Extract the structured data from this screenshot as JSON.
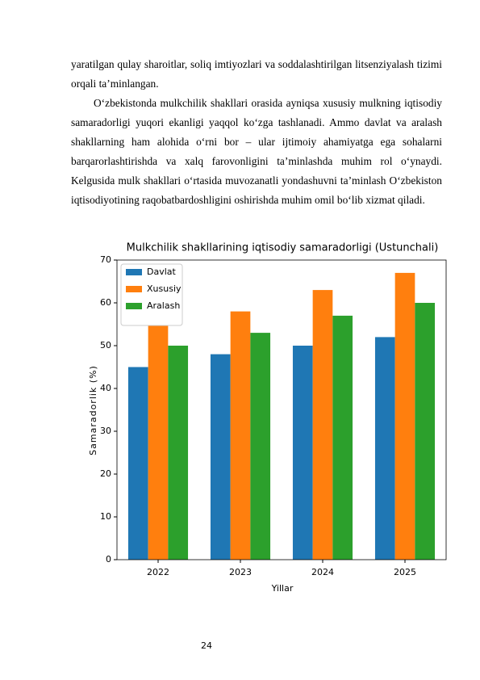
{
  "paragraphs": [
    "yaratilgan qulay sharoitlar, soliq imtiyozlari va soddalashtirilgan litsenziyalash tizimi orqali ta’minlangan.",
    "O‘zbekistonda mulkchilik shakllari orasida ayniqsa xususiy mulkning iqtisodiy samaradorligi yuqori ekanligi yaqqol ko‘zga tashlanadi. Ammo davlat va aralash shakllarning ham alohida o‘rni bor – ular ijtimoiy ahamiyatga ega sohalarni barqarorlashtirishda va xalq farovonligini ta’minlashda muhim rol o‘ynaydi. Kelgusida mulk shakllari o‘rtasida muvozanatli yondashuvni ta’minlash O‘zbekiston iqtisodiyotining raqobatbardoshligini oshirishda muhim omil bo‘lib xizmat qiladi."
  ],
  "chart_data": {
    "type": "bar",
    "title": "Mulkchilik shakllarining iqtisodiy samaradorligi (Ustunchali)",
    "x_label": "Yillar",
    "y_label": "Samaradorlik (%)",
    "categories": [
      "2022",
      "2023",
      "2024",
      "2025"
    ],
    "series": [
      {
        "name": "Davlat",
        "color": "#1f77b4",
        "values": [
          45,
          48,
          50,
          52
        ]
      },
      {
        "name": "Xususiy",
        "color": "#ff7f0e",
        "values": [
          55,
          58,
          63,
          67
        ]
      },
      {
        "name": "Aralash",
        "color": "#2ca02c",
        "values": [
          50,
          53,
          57,
          60
        ]
      }
    ],
    "ylim": [
      0,
      70
    ],
    "yticks": [
      0,
      10,
      20,
      30,
      40,
      50,
      60,
      70
    ],
    "legend": "upper left"
  },
  "page_number": "24"
}
